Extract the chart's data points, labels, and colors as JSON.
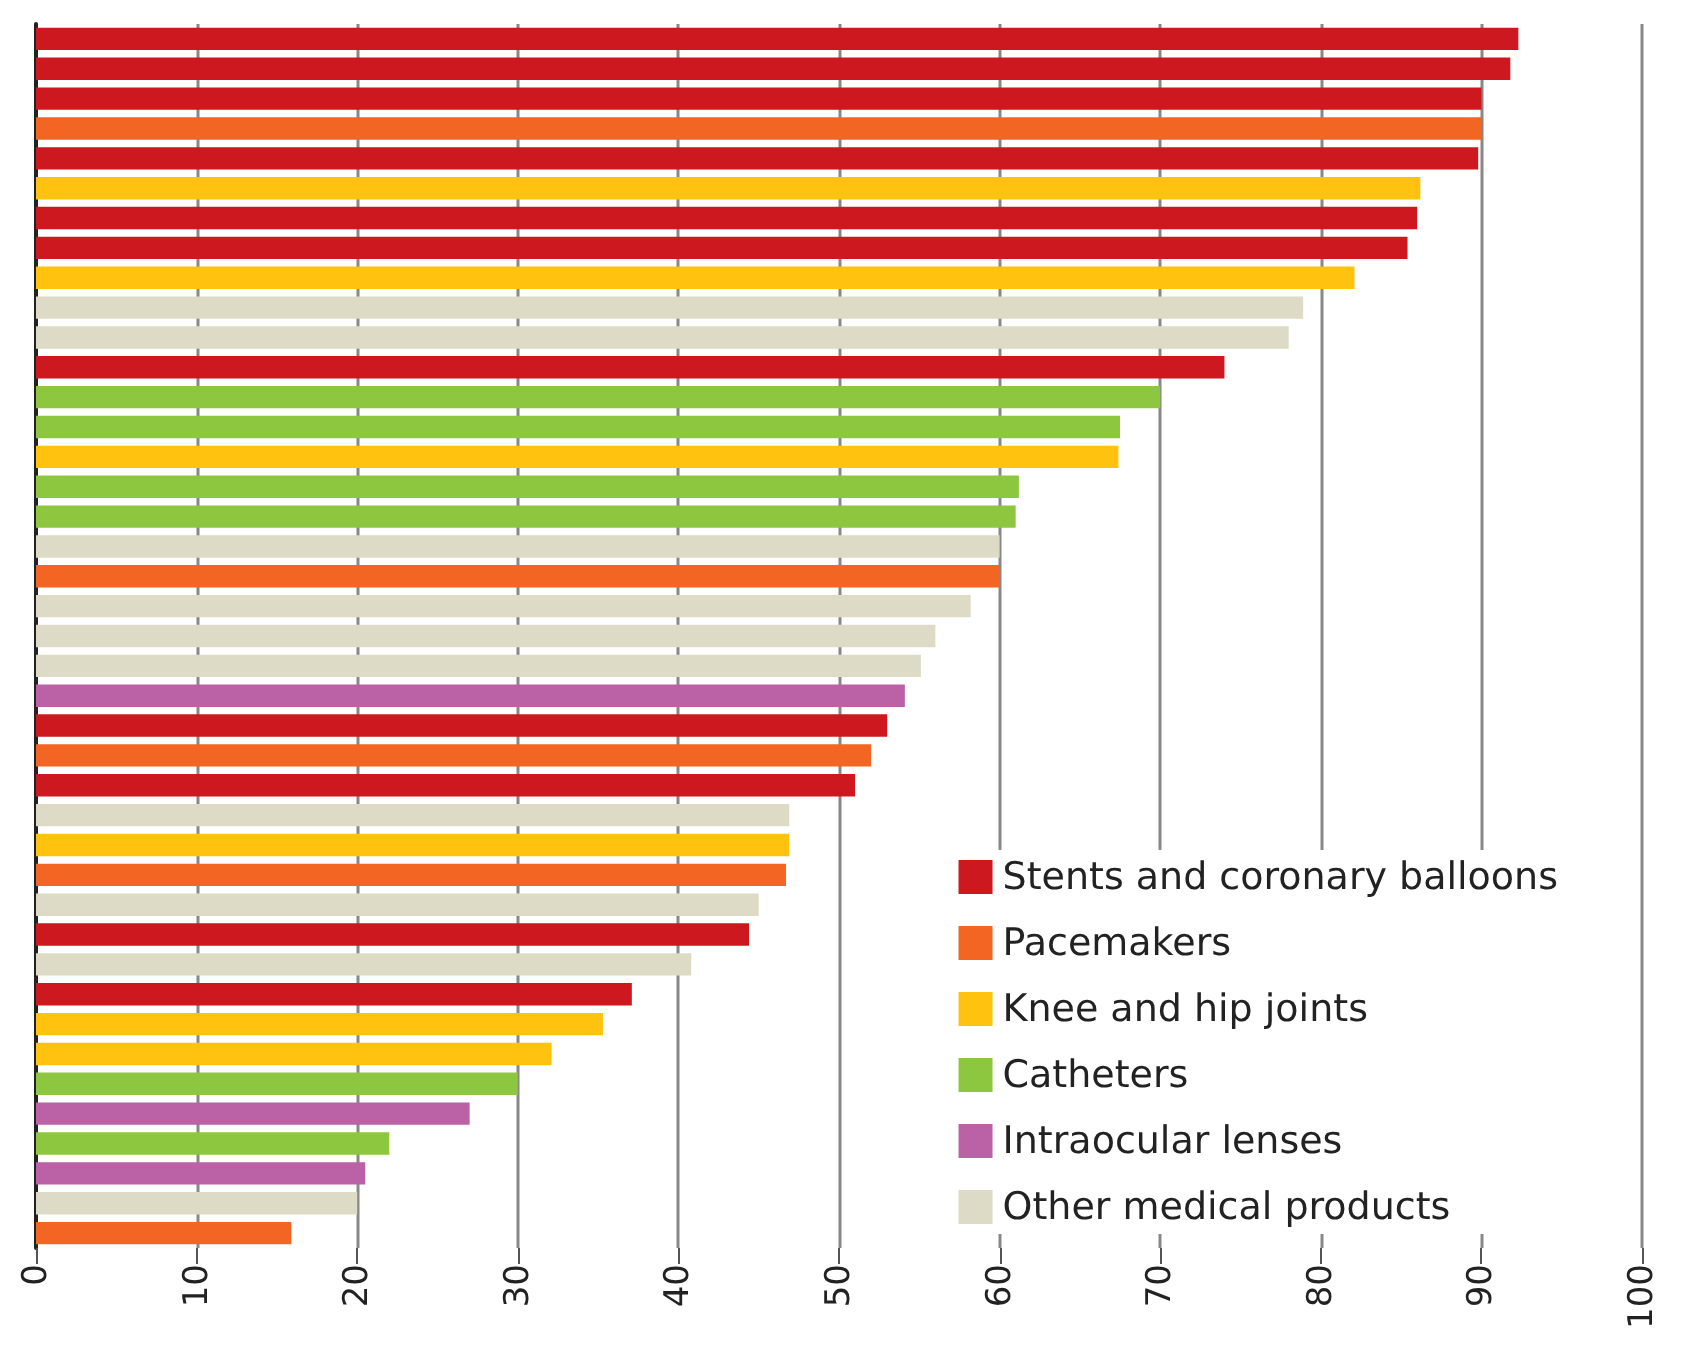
{
  "chart_data": {
    "type": "bar",
    "orientation": "horizontal",
    "stacked": true,
    "categories": [
      null,
      null,
      null,
      null,
      null,
      null,
      null,
      null,
      null,
      null,
      null,
      null,
      null,
      null,
      null,
      null,
      null,
      null,
      null,
      null,
      null,
      null,
      null,
      null,
      null,
      null,
      null,
      null,
      null,
      null,
      null,
      null,
      null,
      null,
      null,
      null,
      null,
      null,
      null,
      null,
      null
    ],
    "series": [
      {
        "name": "Stents and coronary balloons",
        "color": "#cc181e",
        "values": [
          92.3,
          91.8,
          90.0,
          null,
          89.8,
          null,
          86.0,
          85.4,
          null,
          null,
          null,
          74.0,
          null,
          null,
          null,
          null,
          null,
          null,
          null,
          null,
          null,
          null,
          null,
          53.0,
          null,
          51.0,
          null,
          null,
          null,
          null,
          44.4,
          null,
          37.1,
          null,
          null,
          null,
          null,
          null,
          null,
          null,
          null
        ]
      },
      {
        "name": "Pacemakers",
        "color": "#f26522",
        "values": [
          null,
          null,
          null,
          90.0,
          null,
          null,
          null,
          null,
          null,
          null,
          null,
          null,
          null,
          null,
          null,
          null,
          null,
          null,
          60.0,
          null,
          null,
          null,
          null,
          null,
          52.0,
          null,
          null,
          null,
          46.7,
          null,
          null,
          null,
          null,
          null,
          null,
          null,
          null,
          null,
          null,
          null,
          15.9
        ]
      },
      {
        "name": "Knee and hip joints",
        "color": "#ffc20e",
        "values": [
          null,
          null,
          null,
          null,
          null,
          86.2,
          null,
          null,
          82.1,
          null,
          null,
          null,
          null,
          null,
          67.4,
          null,
          null,
          null,
          null,
          null,
          null,
          null,
          null,
          null,
          null,
          null,
          null,
          46.9,
          null,
          null,
          null,
          null,
          null,
          35.3,
          32.1,
          null,
          null,
          null,
          null,
          null,
          null
        ]
      },
      {
        "name": "Catheters",
        "color": "#8dc63f",
        "values": [
          null,
          null,
          null,
          null,
          null,
          null,
          null,
          null,
          null,
          null,
          null,
          null,
          70.0,
          67.5,
          null,
          61.2,
          61.0,
          null,
          null,
          null,
          null,
          null,
          null,
          null,
          null,
          null,
          null,
          null,
          null,
          null,
          null,
          null,
          null,
          null,
          null,
          30.0,
          null,
          22.0,
          null,
          null,
          null
        ]
      },
      {
        "name": "Intraocular lenses",
        "color": "#bb61a6",
        "values": [
          null,
          null,
          null,
          null,
          null,
          null,
          null,
          null,
          null,
          null,
          null,
          null,
          null,
          null,
          null,
          null,
          null,
          null,
          null,
          null,
          null,
          null,
          54.1,
          null,
          null,
          null,
          null,
          null,
          null,
          null,
          null,
          null,
          null,
          null,
          null,
          null,
          27.0,
          null,
          20.5,
          null,
          null
        ]
      },
      {
        "name": "Other medical products",
        "color": "#dddbc5",
        "values": [
          null,
          null,
          null,
          null,
          null,
          null,
          null,
          null,
          null,
          78.9,
          78.0,
          null,
          null,
          null,
          null,
          null,
          null,
          60.0,
          null,
          58.2,
          56.0,
          55.1,
          null,
          null,
          null,
          null,
          46.9,
          null,
          null,
          45.0,
          null,
          40.8,
          null,
          null,
          null,
          null,
          null,
          null,
          null,
          20.0,
          null
        ]
      }
    ],
    "xlim": [
      0,
      100
    ],
    "xticks": [
      0,
      10,
      20,
      30,
      40,
      50,
      60,
      70,
      80,
      90,
      100
    ],
    "grid": "x",
    "legend": "bottom right",
    "tick_labels": "x"
  }
}
